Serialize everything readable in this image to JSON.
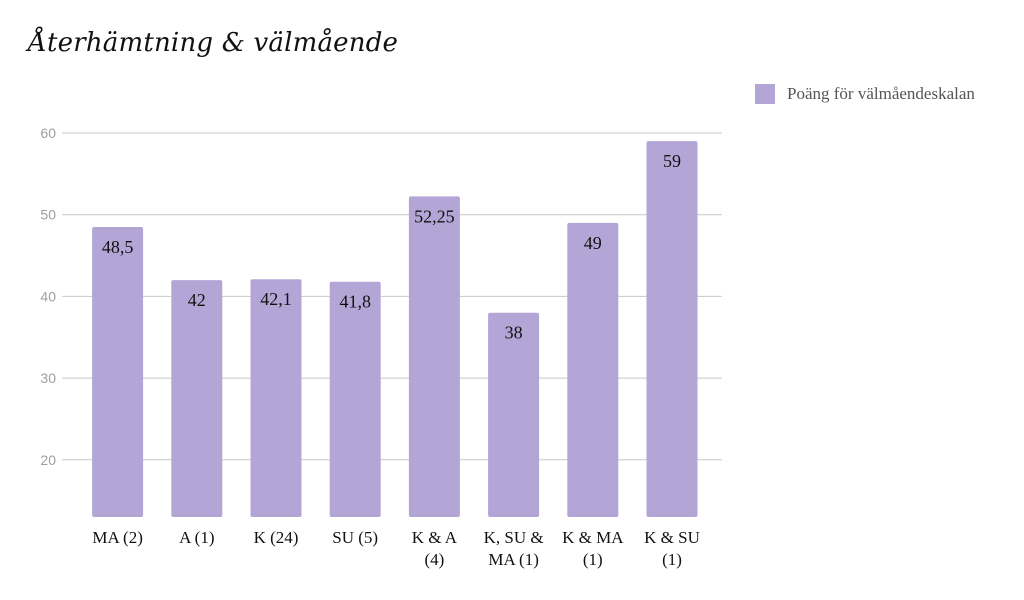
{
  "chart_data": {
    "type": "bar",
    "title": "Återhämtning & välmående",
    "xlabel": "",
    "ylabel": "",
    "categories": [
      "MA (2)",
      "A (1)",
      "K (24)",
      "SU (5)",
      "K & A (4)",
      "K, SU & MA (1)",
      "K & MA (1)",
      "K & SU (1)"
    ],
    "category_lines": [
      [
        "MA (2)"
      ],
      [
        "A (1)"
      ],
      [
        "K (24)"
      ],
      [
        "SU (5)"
      ],
      [
        "K & A",
        "(4)"
      ],
      [
        "K, SU &",
        "MA (1)"
      ],
      [
        "K & MA",
        "(1)"
      ],
      [
        "K & SU",
        "(1)"
      ]
    ],
    "series": [
      {
        "name": "Poäng för välmåendeskalan",
        "values": [
          48.5,
          42,
          42.1,
          41.8,
          52.25,
          38,
          49,
          59
        ],
        "labels": [
          "48,5",
          "42",
          "42,1",
          "41,8",
          "52,25",
          "38",
          "49",
          "59"
        ],
        "color": "#b3a6d6"
      }
    ],
    "ylim": [
      13,
      60
    ],
    "yticks": [
      20,
      30,
      40,
      50,
      60
    ],
    "grid": true,
    "legend_position": "top-right",
    "colors": {
      "gridline": "#c8c8c8",
      "tick_text": "#9e9e9e"
    }
  }
}
